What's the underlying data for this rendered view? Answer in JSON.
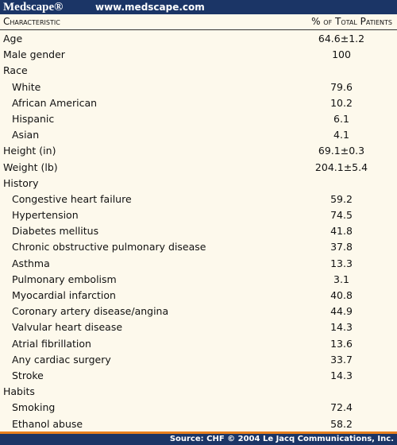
{
  "header": {
    "brand": "Medscape®",
    "url": "www.medscape.com"
  },
  "table": {
    "columns": [
      "Characteristic",
      "% of Total Patients"
    ],
    "rows": [
      {
        "label": "Age",
        "value": "64.6±1.2"
      },
      {
        "label": "Male gender",
        "value": 100
      },
      {
        "label": "Race",
        "rows": [
          {
            "label": "White",
            "value": 79.6
          },
          {
            "label": "African American",
            "value": 10.2
          },
          {
            "label": "Hispanic",
            "value": 6.1
          },
          {
            "label": "Asian",
            "value": 4.1
          }
        ]
      },
      {
        "label": "Height (in)",
        "value": "69.1±0.3"
      },
      {
        "label": "Weight (lb)",
        "value": "204.1±5.4"
      },
      {
        "label": "History",
        "rows": [
          {
            "label": "Congestive heart failure",
            "value": 59.2
          },
          {
            "label": "Hypertension",
            "value": 74.5
          },
          {
            "label": "Diabetes mellitus",
            "value": 41.8
          },
          {
            "label": "Chronic obstructive pulmonary disease",
            "value": 37.8
          },
          {
            "label": "Asthma",
            "value": 13.3
          },
          {
            "label": "Pulmonary embolism",
            "value": 3.1
          },
          {
            "label": "Myocardial infarction",
            "value": 40.8
          },
          {
            "label": "Coronary artery disease/angina",
            "value": 44.9
          },
          {
            "label": "Valvular heart disease",
            "value": 14.3
          },
          {
            "label": "Atrial fibrillation",
            "value": 13.6
          },
          {
            "label": "Any cardiac surgery",
            "value": 33.7
          },
          {
            "label": "Stroke",
            "value": 14.3
          }
        ]
      },
      {
        "label": "Habits",
        "rows": [
          {
            "label": "Smoking",
            "value": 72.4
          },
          {
            "label": "Ethanol abuse",
            "value": 58.2
          }
        ]
      }
    ]
  },
  "footer": {
    "source": "Source: CHF © 2004 Le Jacq Communications, Inc."
  }
}
